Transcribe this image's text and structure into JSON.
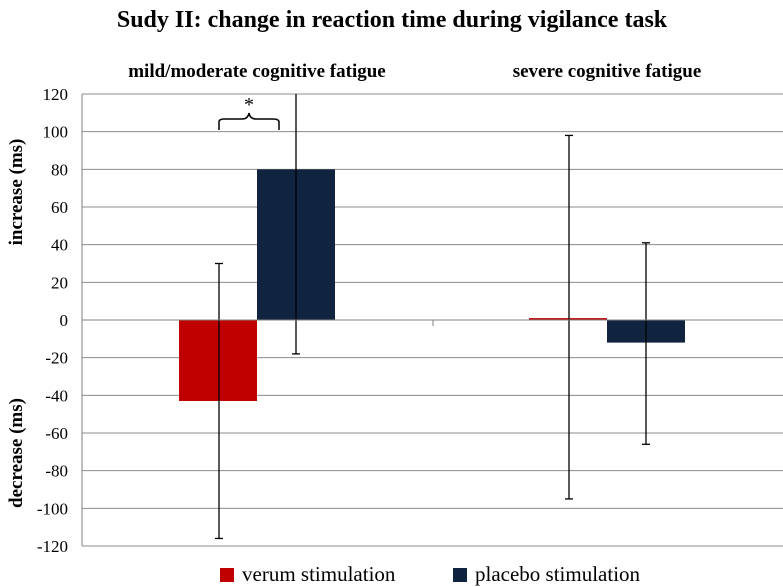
{
  "chart_data": {
    "type": "bar",
    "title": "Sudy II: change in reaction time during  vigilance task",
    "ylabel_top": "increase (ms)",
    "ylabel_bottom": "decrease (ms)",
    "ylim": [
      -120,
      120
    ],
    "yticks": [
      120,
      100,
      80,
      60,
      40,
      20,
      0,
      -20,
      -40,
      -60,
      -80,
      -100,
      -120
    ],
    "grid": true,
    "categories": [
      "mild/moderate cognitive fatigue",
      "severe cognitive fatigue"
    ],
    "series": [
      {
        "name": "verum stimulation",
        "color": "#c00000",
        "values": [
          -43,
          1
        ],
        "error_low": [
          -116,
          -95
        ],
        "error_high": [
          30,
          98
        ]
      },
      {
        "name": "placebo stimulation",
        "color": "#10233f",
        "values": [
          80,
          -12
        ],
        "error_low": [
          -18,
          -66
        ],
        "error_high": [
          120,
          41
        ]
      }
    ],
    "annotation": {
      "text": "*",
      "between": [
        "verum stimulation",
        "placebo stimulation"
      ],
      "category": "mild/moderate cognitive fatigue"
    },
    "legend_position": "bottom"
  }
}
